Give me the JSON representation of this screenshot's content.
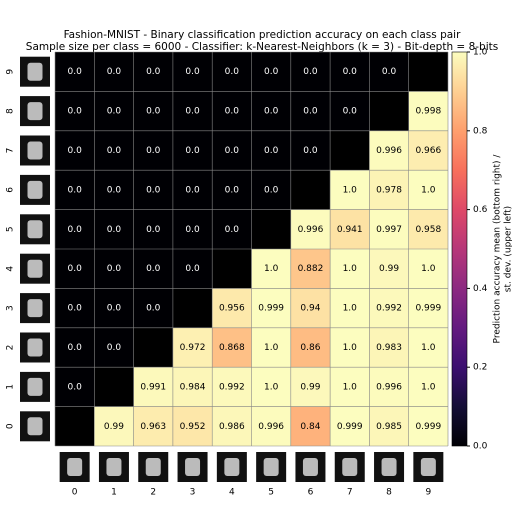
{
  "chart_data": {
    "type": "heatmap",
    "title": "Fashion-MNIST - Binary classification prediction accuracy on each class pair",
    "subtitle": "Sample size per class = 6000 - Classifier: k-Nearest-Neighbors (k = 3) - Bit-depth = 8-bits",
    "x": [
      0,
      1,
      2,
      3,
      4,
      5,
      6,
      7,
      8,
      9
    ],
    "y": [
      0,
      1,
      2,
      3,
      4,
      5,
      6,
      7,
      8,
      9
    ],
    "values": [
      [
        null,
        0.99,
        0.963,
        0.952,
        0.986,
        0.996,
        0.84,
        0.999,
        0.985,
        0.999
      ],
      [
        0,
        null,
        0.991,
        0.984,
        0.992,
        1,
        0.99,
        1,
        0.996,
        1
      ],
      [
        0,
        0,
        null,
        0.972,
        0.868,
        1,
        0.86,
        1,
        0.983,
        1
      ],
      [
        0,
        0,
        0,
        null,
        0.956,
        0.999,
        0.94,
        1,
        0.992,
        0.999
      ],
      [
        0,
        0,
        0,
        0,
        null,
        1,
        0.882,
        1,
        0.99,
        1
      ],
      [
        0,
        0,
        0,
        0,
        0,
        null,
        0.996,
        0.941,
        0.997,
        0.958
      ],
      [
        0,
        0,
        0,
        0,
        0,
        0,
        null,
        1,
        0.978,
        1
      ],
      [
        0,
        0,
        0,
        0,
        0,
        0,
        0,
        null,
        0.996,
        0.966
      ],
      [
        0,
        0,
        0,
        0,
        0,
        0,
        0,
        0,
        null,
        0.998
      ],
      [
        0,
        0,
        0,
        0,
        0,
        0,
        0,
        0,
        0,
        null
      ]
    ],
    "value_labels": [
      [
        null,
        "0.99",
        "0.963",
        "0.952",
        "0.986",
        "0.996",
        "0.84",
        "0.999",
        "0.985",
        "0.999"
      ],
      [
        "0.0",
        null,
        "0.991",
        "0.984",
        "0.992",
        "1.0",
        "0.99",
        "1.0",
        "0.996",
        "1.0"
      ],
      [
        "0.0",
        "0.0",
        null,
        "0.972",
        "0.868",
        "1.0",
        "0.86",
        "1.0",
        "0.983",
        "1.0"
      ],
      [
        "0.0",
        "0.0",
        "0.0",
        null,
        "0.956",
        "0.999",
        "0.94",
        "1.0",
        "0.992",
        "0.999"
      ],
      [
        "0.0",
        "0.0",
        "0.0",
        "0.0",
        null,
        "1.0",
        "0.882",
        "1.0",
        "0.99",
        "1.0"
      ],
      [
        "0.0",
        "0.0",
        "0.0",
        "0.0",
        "0.0",
        null,
        "0.996",
        "0.941",
        "0.997",
        "0.958"
      ],
      [
        "0.0",
        "0.0",
        "0.0",
        "0.0",
        "0.0",
        "0.0",
        null,
        "1.0",
        "0.978",
        "1.0"
      ],
      [
        "0.0",
        "0.0",
        "0.0",
        "0.0",
        "0.0",
        "0.0",
        "0.0",
        null,
        "0.996",
        "0.966"
      ],
      [
        "0.0",
        "0.0",
        "0.0",
        "0.0",
        "0.0",
        "0.0",
        "0.0",
        "0.0",
        null,
        "0.998"
      ],
      [
        "0.0",
        "0.0",
        "0.0",
        "0.0",
        "0.0",
        "0.0",
        "0.0",
        "0.0",
        "0.0",
        null
      ]
    ],
    "colormap": "magma",
    "clim": [
      0,
      1
    ],
    "cticks": [
      {
        "value": 0,
        "label": "0.0"
      },
      0.2,
      0.4,
      0.6,
      0.8,
      {
        "value": 1,
        "label": "1.0"
      }
    ],
    "colorbar_label": [
      "Prediction accuracy mean (bottom right) /",
      "st. dev. (upper left)"
    ]
  }
}
